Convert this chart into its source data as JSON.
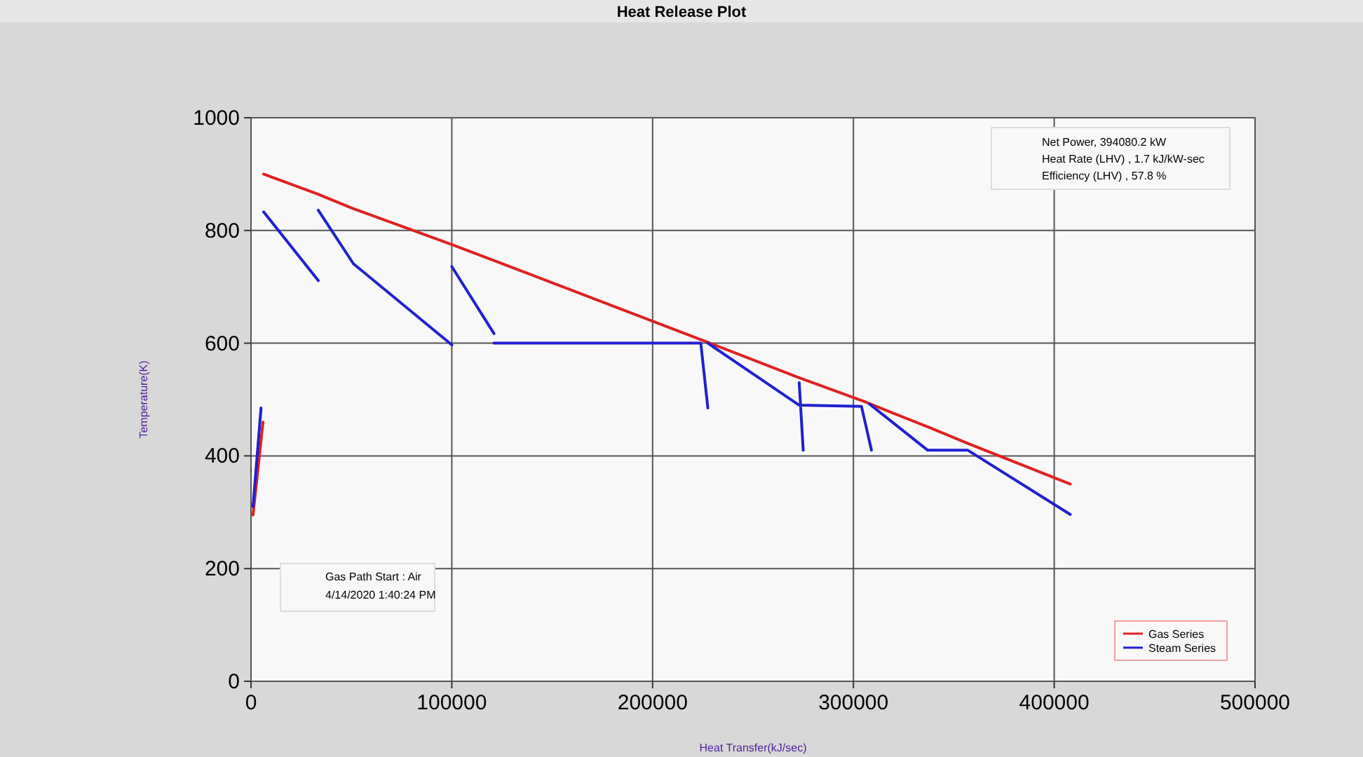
{
  "chart_data": {
    "type": "line",
    "title": "Heat Release Plot",
    "xlabel": "Heat Transfer(kJ/sec)",
    "ylabel": "Temperature(K)",
    "xlim": [
      0,
      500000
    ],
    "ylim": [
      0,
      1000
    ],
    "xticks": [
      0,
      100000,
      200000,
      300000,
      400000,
      500000
    ],
    "yticks": [
      0,
      200,
      400,
      600,
      800,
      1000
    ],
    "grid": true,
    "legend": "bottom right",
    "annotations": [
      "Net Power,    394080.2 kW",
      "Heat Rate (LHV) , 1.7 kJ/kW-sec",
      "Efficiency (LHV) , 57.8 %",
      "Gas Path Start : Air",
      "4/14/2020 1:40:24 PM"
    ],
    "series": [
      {
        "name": "Gas Series",
        "color": "#e02020",
        "x": [
          1000,
          6000,
          null,
          6300,
          33000,
          50000,
          100000,
          120000,
          225000,
          272000,
          305000,
          338000,
          357000,
          408000
        ],
        "values": [
          295,
          460,
          null,
          900,
          865,
          840,
          775,
          748,
          605,
          540,
          497,
          450,
          422,
          350
        ]
      },
      {
        "name": "Steam Series",
        "color": "#2020d0",
        "x": [
          1000,
          5000,
          null,
          6300,
          33500,
          null,
          33500,
          51000,
          100000,
          null,
          100000,
          121000,
          null,
          121000,
          224000,
          227500,
          null,
          227500,
          273000,
          304000,
          309000,
          null,
          273000,
          275000,
          null,
          308000,
          337000,
          357000,
          408000
        ],
        "values": [
          310,
          485,
          null,
          833,
          711,
          null,
          836,
          741,
          597,
          null,
          736,
          617,
          null,
          600,
          600,
          485,
          null,
          600,
          490,
          488,
          410,
          null,
          530,
          410,
          null,
          492,
          410,
          410,
          296
        ]
      }
    ]
  }
}
